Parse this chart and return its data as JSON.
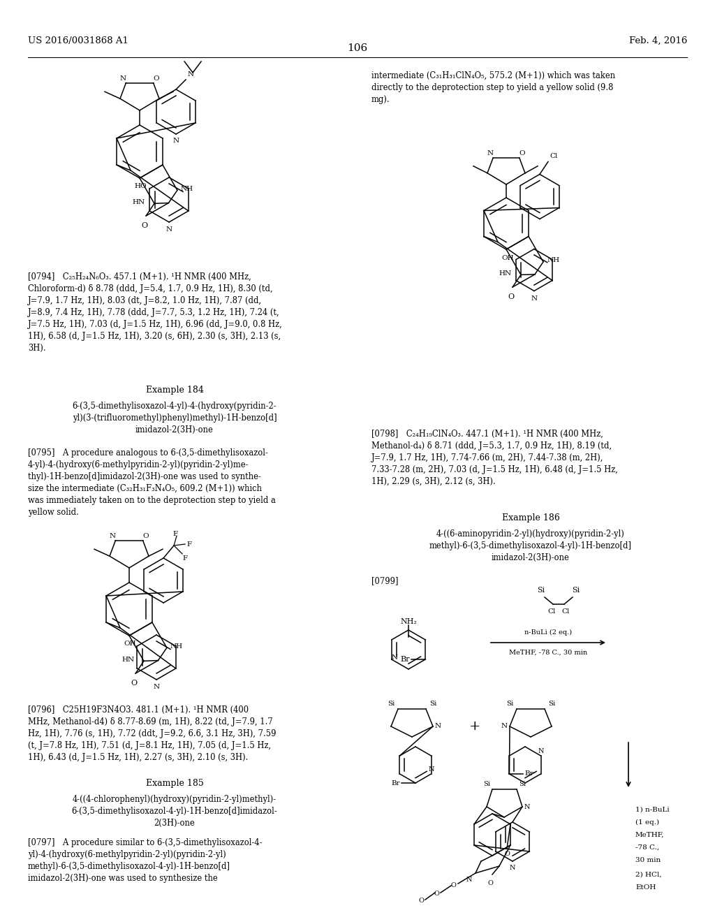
{
  "page_number": "106",
  "patent_number": "US 2016/0031868 A1",
  "patent_date": "Feb. 4, 2016",
  "background_color": "#ffffff",
  "p0794": "[0794] C₂₅H₂₄N₆O₃. 457.1 (M+1). ¹H NMR (400 MHz,\nChloroform-d) δ 8.78 (ddd, J=5.4, 1.7, 0.9 Hz, 1H), 8.30 (td,\nJ=7.9, 1.7 Hz, 1H), 8.03 (dt, J=8.2, 1.0 Hz, 1H), 7.87 (dd,\nJ=8.9, 7.4 Hz, 1H), 7.78 (ddd, J=7.7, 5.3, 1.2 Hz, 1H), 7.24 (t,\nJ=7.5 Hz, 1H), 7.03 (d, J=1.5 Hz, 1H), 6.96 (dd, J=9.0, 0.8 Hz,\n1H), 6.58 (d, J=1.5 Hz, 1H), 3.20 (s, 6H), 2.30 (s, 3H), 2.13 (s,\n3H).",
  "ex184_header": "Example 184",
  "ex184_title": "6-(3,5-dimethylisoxazol-4-yl)-4-(hydroxy(pyridin-2-\nyl)(3-(trifluoromethyl)phenyl)methyl)-1H-benzo[d]\nimidazol-2(3H)-one",
  "p0795": "[0795] A procedure analogous to 6-(3,5-dimethylisoxazol-\n4-yl)-4-(hydroxy(6-methylpyridin-2-yl)(pyridin-2-yl)me-\nthyl)-1H-benzo[d]imidazol-2(3H)-one was used to synthe-\nsize the intermediate (C₃₂H₃₁F₃N₄O₅, 609.2 (M+1)) which\nwas immediately taken on to the deprotection step to yield a\nyellow solid.",
  "p0796": "[0796] C25H19F3N4O3. 481.1 (M+1). ¹H NMR (400\nMHz, Methanol-d4) δ 8.77-8.69 (m, 1H), 8.22 (td, J=7.9, 1.7\nHz, 1H), 7.76 (s, 1H), 7.72 (ddt, J=9.2, 6.6, 3.1 Hz, 3H), 7.59\n(t, J=7.8 Hz, 1H), 7.51 (d, J=8.1 Hz, 1H), 7.05 (d, J=1.5 Hz,\n1H), 6.43 (d, J=1.5 Hz, 1H), 2.27 (s, 3H), 2.10 (s, 3H).",
  "ex185_header": "Example 185",
  "ex185_title": "4-((4-chlorophenyl)(hydroxy)(pyridin-2-yl)methyl)-\n6-(3,5-dimethylisoxazol-4-yl)-1H-benzo[d]imidazol-\n2(3H)-one",
  "p0797": "[0797] A procedure similar to 6-(3,5-dimethylisoxazol-4-\nyl)-4-(hydroxy(6-methylpyridin-2-yl)(pyridin-2-yl)\nmethyl)-6-(3,5-dimethylisoxazol-4-yl)-1H-benzo[d]\nimidazol-2(3H)-one was used to synthesize the",
  "right_top": "intermediate (C₃₁H₃₁ClN₄O₅, 575.2 (M+1)) which was taken\ndirectly to the deprotection step to yield a yellow solid (9.8\nmg).",
  "p0798": "[0798] C₂₄H₁₉ClN₄O₃. 447.1 (M+1). ¹H NMR (400 MHz,\nMethanol-d₄) δ 8.71 (ddd, J=5.3, 1.7, 0.9 Hz, 1H), 8.19 (td,\nJ=7.9, 1.7 Hz, 1H), 7.74-7.66 (m, 2H), 7.44-7.38 (m, 2H),\n7.33-7.28 (m, 2H), 7.03 (d, J=1.5 Hz, 1H), 6.48 (d, J=1.5 Hz,\n1H), 2.29 (s, 3H), 2.12 (s, 3H).",
  "ex186_header": "Example 186",
  "ex186_title": "4-((6-aminopyridin-2-yl)(hydroxy)(pyridin-2-yl)\nmethyl)-6-(3,5-dimethylisoxazol-4-yl)-1H-benzo[d]\nimidazol-2(3H)-one",
  "p0799": "[0799]"
}
